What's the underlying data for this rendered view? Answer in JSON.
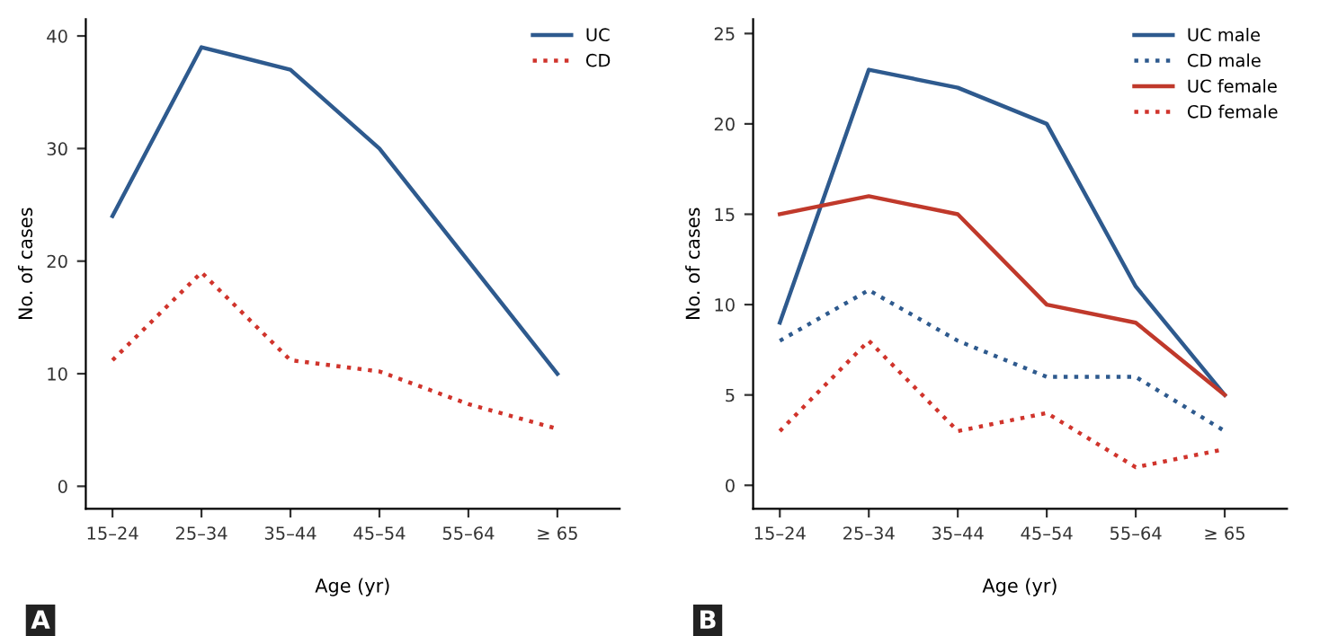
{
  "chart_data": [
    {
      "type": "line",
      "xlabel": "Age (yr)",
      "ylabel": "No. of cases",
      "categories": [
        "15–24",
        "25–34",
        "35–44",
        "45–54",
        "55–64",
        "≥ 65"
      ],
      "ylim": [
        -2,
        41.5
      ],
      "yticks": [
        0,
        10,
        20,
        30,
        40
      ],
      "grid": false,
      "legend": "top right",
      "marker": "none",
      "annotations": [
        "A"
      ],
      "series": [
        {
          "name": "UC",
          "color": "#2e5a8e",
          "line_style": "solid",
          "values": [
            24,
            39,
            37,
            30,
            20,
            10
          ]
        },
        {
          "name": "CD",
          "color": "#d0342c",
          "line_style": "dotted",
          "values": [
            11.2,
            19,
            11.2,
            10.2,
            7.3,
            5.1
          ]
        }
      ]
    },
    {
      "type": "line",
      "xlabel": "Age (yr)",
      "ylabel": "No. of cases",
      "categories": [
        "15–24",
        "25–34",
        "35–44",
        "45–54",
        "55–64",
        "≥ 65"
      ],
      "ylim": [
        -1.3,
        25.8
      ],
      "yticks": [
        0,
        5,
        10,
        15,
        20,
        25
      ],
      "grid": false,
      "legend": "top right",
      "marker": "none",
      "annotations": [
        "B"
      ],
      "series": [
        {
          "name": "UC male",
          "color": "#2e5a8e",
          "line_style": "solid",
          "values": [
            9,
            23,
            22,
            20,
            11,
            5
          ]
        },
        {
          "name": "CD male",
          "color": "#2e5a8e",
          "line_style": "dotted",
          "values": [
            8,
            10.8,
            8,
            6,
            6,
            3
          ]
        },
        {
          "name": "UC female",
          "color": "#c0392b",
          "line_style": "solid",
          "values": [
            15,
            16,
            15,
            10,
            9,
            5
          ]
        },
        {
          "name": "CD female",
          "color": "#d0342c",
          "line_style": "dotted",
          "values": [
            3,
            8,
            3,
            4,
            1,
            2
          ]
        }
      ]
    }
  ]
}
